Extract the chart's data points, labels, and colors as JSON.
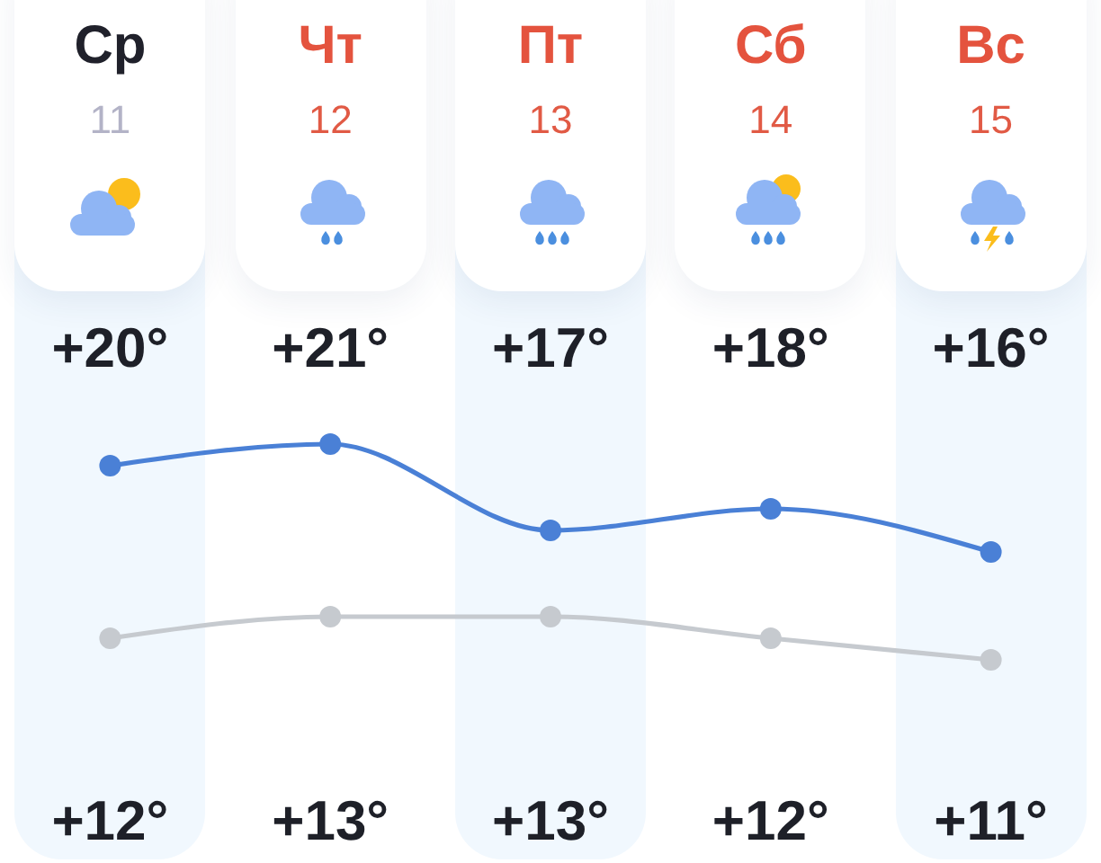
{
  "chart_data": {
    "type": "line",
    "categories": [
      "Ср\n11",
      "Чт\n12",
      "Пт\n13",
      "Сб\n14",
      "Вс\n15"
    ],
    "series": [
      {
        "color": "#4a80d6",
        "values": [
          20,
          21,
          17,
          18,
          16
        ],
        "value_labels": [
          "+20°",
          "+21°",
          "+17°",
          "+18°",
          "+16°"
        ]
      },
      {
        "color": "#c6cacf",
        "values": [
          12,
          13,
          13,
          12,
          11
        ],
        "value_labels": [
          "+12°",
          "+13°",
          "+13°",
          "+12°",
          "+11°"
        ]
      }
    ],
    "marker": "circle",
    "tick_labels": "x"
  }
}
